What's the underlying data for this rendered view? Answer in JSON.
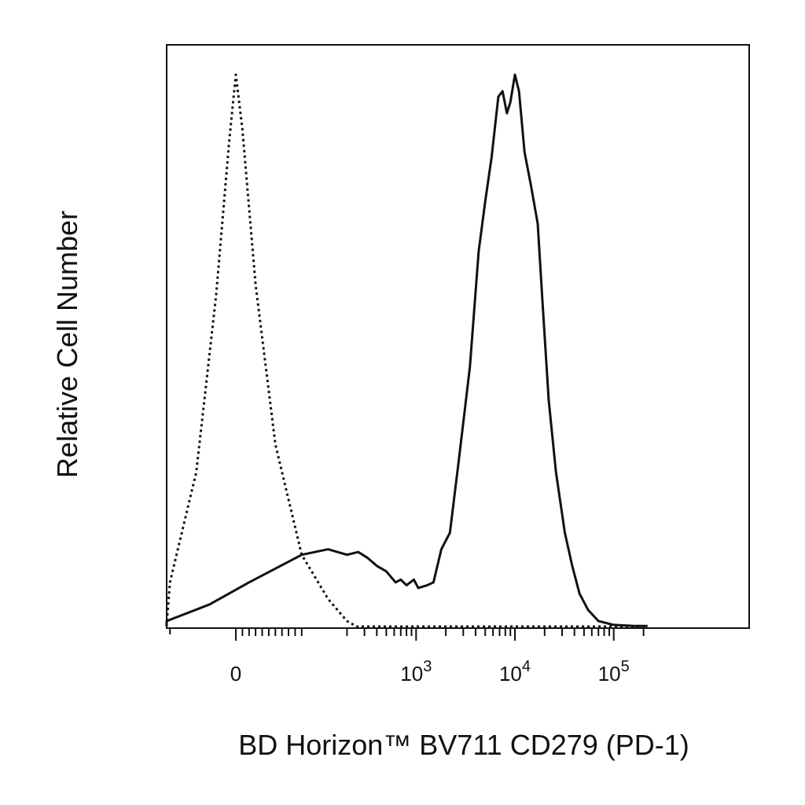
{
  "chart_data": {
    "type": "line",
    "title": "",
    "xlabel": "BD Horizon™ BV711  CD279 (PD-1)",
    "ylabel": "Relative Cell Number",
    "x_scale": "biexponential",
    "xlim": [
      -300,
      220000
    ],
    "ylim": [
      0,
      1
    ],
    "grid": false,
    "legend": "none",
    "x_tick_labels": [
      {
        "value": 0,
        "base": "0",
        "exp": ""
      },
      {
        "value": 1000,
        "base": "10",
        "exp": "3"
      },
      {
        "value": 10000,
        "base": "10",
        "exp": "4"
      },
      {
        "value": 100000,
        "base": "10",
        "exp": "5"
      }
    ],
    "series": [
      {
        "style": "dotted",
        "color": "#111111",
        "points": [
          [
            -300,
            0
          ],
          [
            -160,
            0.005
          ],
          [
            -100,
            0.08
          ],
          [
            -60,
            0.28
          ],
          [
            -30,
            0.6
          ],
          [
            -10,
            0.88
          ],
          [
            0,
            1.0
          ],
          [
            10,
            0.9
          ],
          [
            30,
            0.62
          ],
          [
            60,
            0.33
          ],
          [
            100,
            0.13
          ],
          [
            140,
            0.05
          ],
          [
            200,
            0.01
          ],
          [
            250,
            0
          ],
          [
            300,
            0
          ],
          [
            1000,
            0
          ],
          [
            10000,
            0
          ],
          [
            220000,
            0
          ]
        ]
      },
      {
        "style": "solid",
        "color": "#111111",
        "points": [
          [
            -300,
            0
          ],
          [
            -120,
            0.01
          ],
          [
            -40,
            0.04
          ],
          [
            20,
            0.08
          ],
          [
            100,
            0.13
          ],
          [
            140,
            0.14
          ],
          [
            200,
            0.13
          ],
          [
            260,
            0.135
          ],
          [
            320,
            0.125
          ],
          [
            400,
            0.11
          ],
          [
            500,
            0.1
          ],
          [
            620,
            0.08
          ],
          [
            700,
            0.085
          ],
          [
            800,
            0.075
          ],
          [
            950,
            0.085
          ],
          [
            1050,
            0.07
          ],
          [
            1300,
            0.075
          ],
          [
            1500,
            0.08
          ],
          [
            1800,
            0.14
          ],
          [
            2200,
            0.17
          ],
          [
            2700,
            0.3
          ],
          [
            3500,
            0.47
          ],
          [
            4300,
            0.68
          ],
          [
            5000,
            0.77
          ],
          [
            5800,
            0.85
          ],
          [
            6800,
            0.96
          ],
          [
            7500,
            0.97
          ],
          [
            8300,
            0.93
          ],
          [
            9000,
            0.95
          ],
          [
            10000,
            1.0
          ],
          [
            11000,
            0.97
          ],
          [
            12500,
            0.86
          ],
          [
            14500,
            0.8
          ],
          [
            17000,
            0.73
          ],
          [
            19000,
            0.59
          ],
          [
            22000,
            0.41
          ],
          [
            26000,
            0.28
          ],
          [
            32000,
            0.17
          ],
          [
            38000,
            0.11
          ],
          [
            45000,
            0.06
          ],
          [
            55000,
            0.03
          ],
          [
            70000,
            0.01
          ],
          [
            100000,
            0.003
          ],
          [
            130000,
            0.002
          ],
          [
            160000,
            0.001
          ],
          [
            220000,
            0.001
          ]
        ]
      }
    ]
  }
}
